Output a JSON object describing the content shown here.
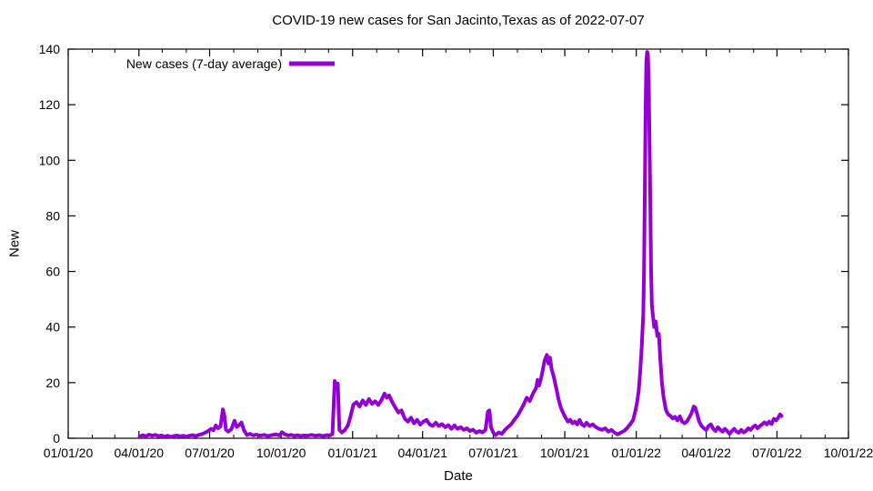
{
  "chart_data": {
    "type": "line",
    "title": "COVID-19 new cases for San Jacinto,Texas as of 2022-07-07",
    "xlabel": "Date",
    "ylabel": "New",
    "grid": false,
    "legend_position": "top-left-inside",
    "legend": [
      {
        "label": "New cases (7-day average)",
        "color": "#9400D3"
      }
    ],
    "x_range": [
      "2020-01-01",
      "2022-10-01"
    ],
    "ylim": [
      0,
      140
    ],
    "y_ticks": [
      0,
      20,
      40,
      60,
      80,
      100,
      120,
      140
    ],
    "x_ticks": [
      {
        "label": "01/01/20",
        "date": "2020-01-01"
      },
      {
        "label": "04/01/20",
        "date": "2020-04-01"
      },
      {
        "label": "07/01/20",
        "date": "2020-07-01"
      },
      {
        "label": "10/01/20",
        "date": "2020-10-01"
      },
      {
        "label": "01/01/21",
        "date": "2021-01-01"
      },
      {
        "label": "04/01/21",
        "date": "2021-04-01"
      },
      {
        "label": "07/01/21",
        "date": "2021-07-01"
      },
      {
        "label": "10/01/21",
        "date": "2021-10-01"
      },
      {
        "label": "01/01/22",
        "date": "2022-01-01"
      },
      {
        "label": "04/01/22",
        "date": "2022-04-01"
      },
      {
        "label": "07/01/22",
        "date": "2022-07-01"
      },
      {
        "label": "10/01/22",
        "date": "2022-10-01"
      }
    ],
    "x_minor_tick_interval": "month",
    "line_color": "#9400D3",
    "line_width": 4,
    "colors": {
      "axis": "#000000",
      "text": "#000000",
      "background": "#ffffff"
    },
    "series": [
      {
        "name": "New cases (7-day average)",
        "points": [
          [
            "2020-04-02",
            0.6
          ],
          [
            "2020-04-06",
            1.1
          ],
          [
            "2020-04-10",
            0.7
          ],
          [
            "2020-04-14",
            1.3
          ],
          [
            "2020-04-18",
            0.9
          ],
          [
            "2020-04-22",
            1.2
          ],
          [
            "2020-04-26",
            0.8
          ],
          [
            "2020-04-30",
            1.0
          ],
          [
            "2020-05-04",
            0.6
          ],
          [
            "2020-05-08",
            0.9
          ],
          [
            "2020-05-12",
            0.5
          ],
          [
            "2020-05-16",
            0.8
          ],
          [
            "2020-05-20",
            1.0
          ],
          [
            "2020-05-24",
            0.7
          ],
          [
            "2020-05-28",
            0.9
          ],
          [
            "2020-06-01",
            0.6
          ],
          [
            "2020-06-05",
            0.9
          ],
          [
            "2020-06-09",
            1.1
          ],
          [
            "2020-06-13",
            0.8
          ],
          [
            "2020-06-17",
            1.2
          ],
          [
            "2020-06-21",
            1.5
          ],
          [
            "2020-06-25",
            2.0
          ],
          [
            "2020-06-29",
            2.6
          ],
          [
            "2020-07-03",
            3.4
          ],
          [
            "2020-07-06",
            2.9
          ],
          [
            "2020-07-09",
            4.6
          ],
          [
            "2020-07-12",
            3.6
          ],
          [
            "2020-07-15",
            4.3
          ],
          [
            "2020-07-18",
            10.4
          ],
          [
            "2020-07-20",
            8.0
          ],
          [
            "2020-07-22",
            3.0
          ],
          [
            "2020-07-25",
            2.4
          ],
          [
            "2020-07-29",
            3.3
          ],
          [
            "2020-08-02",
            6.3
          ],
          [
            "2020-08-05",
            4.1
          ],
          [
            "2020-08-08",
            4.7
          ],
          [
            "2020-08-11",
            5.7
          ],
          [
            "2020-08-14",
            3.0
          ],
          [
            "2020-08-18",
            1.1
          ],
          [
            "2020-08-22",
            1.6
          ],
          [
            "2020-08-26",
            1.0
          ],
          [
            "2020-08-30",
            1.3
          ],
          [
            "2020-09-04",
            0.9
          ],
          [
            "2020-09-09",
            1.2
          ],
          [
            "2020-09-14",
            0.8
          ],
          [
            "2020-09-19",
            1.1
          ],
          [
            "2020-09-24",
            1.4
          ],
          [
            "2020-09-29",
            1.0
          ],
          [
            "2020-10-02",
            2.2
          ],
          [
            "2020-10-06",
            1.4
          ],
          [
            "2020-10-10",
            1.0
          ],
          [
            "2020-10-14",
            1.2
          ],
          [
            "2020-10-18",
            0.8
          ],
          [
            "2020-10-22",
            1.1
          ],
          [
            "2020-10-26",
            0.8
          ],
          [
            "2020-10-30",
            1.0
          ],
          [
            "2020-11-04",
            0.9
          ],
          [
            "2020-11-09",
            1.2
          ],
          [
            "2020-11-14",
            0.9
          ],
          [
            "2020-11-19",
            1.1
          ],
          [
            "2020-11-24",
            0.8
          ],
          [
            "2020-11-29",
            1.1
          ],
          [
            "2020-12-03",
            1.0
          ],
          [
            "2020-12-06",
            1.6
          ],
          [
            "2020-12-09",
            20.6
          ],
          [
            "2020-12-11",
            18.4
          ],
          [
            "2020-12-13",
            19.7
          ],
          [
            "2020-12-15",
            3.0
          ],
          [
            "2020-12-18",
            2.1
          ],
          [
            "2020-12-22",
            2.9
          ],
          [
            "2020-12-26",
            4.6
          ],
          [
            "2020-12-29",
            7.6
          ],
          [
            "2021-01-02",
            12.1
          ],
          [
            "2021-01-06",
            13.0
          ],
          [
            "2021-01-10",
            11.4
          ],
          [
            "2021-01-14",
            13.6
          ],
          [
            "2021-01-18",
            12.0
          ],
          [
            "2021-01-22",
            14.1
          ],
          [
            "2021-01-26",
            12.4
          ],
          [
            "2021-01-30",
            13.3
          ],
          [
            "2021-02-03",
            12.0
          ],
          [
            "2021-02-07",
            13.7
          ],
          [
            "2021-02-11",
            16.1
          ],
          [
            "2021-02-14",
            14.6
          ],
          [
            "2021-02-17",
            15.4
          ],
          [
            "2021-02-21",
            13.0
          ],
          [
            "2021-02-25",
            11.0
          ],
          [
            "2021-03-01",
            9.3
          ],
          [
            "2021-03-05",
            10.0
          ],
          [
            "2021-03-09",
            7.1
          ],
          [
            "2021-03-13",
            6.0
          ],
          [
            "2021-03-17",
            7.4
          ],
          [
            "2021-03-21",
            5.4
          ],
          [
            "2021-03-25",
            6.6
          ],
          [
            "2021-03-29",
            4.9
          ],
          [
            "2021-04-02",
            6.0
          ],
          [
            "2021-04-06",
            6.6
          ],
          [
            "2021-04-10",
            5.0
          ],
          [
            "2021-04-14",
            4.4
          ],
          [
            "2021-04-18",
            5.6
          ],
          [
            "2021-04-22",
            4.4
          ],
          [
            "2021-04-26",
            5.1
          ],
          [
            "2021-04-30",
            4.0
          ],
          [
            "2021-05-04",
            4.7
          ],
          [
            "2021-05-08",
            3.4
          ],
          [
            "2021-05-12",
            4.6
          ],
          [
            "2021-05-16",
            3.4
          ],
          [
            "2021-05-20",
            4.0
          ],
          [
            "2021-05-24",
            3.0
          ],
          [
            "2021-05-28",
            3.6
          ],
          [
            "2021-06-01",
            2.6
          ],
          [
            "2021-06-05",
            3.1
          ],
          [
            "2021-06-09",
            2.0
          ],
          [
            "2021-06-13",
            2.6
          ],
          [
            "2021-06-17",
            2.1
          ],
          [
            "2021-06-21",
            3.0
          ],
          [
            "2021-06-24",
            9.6
          ],
          [
            "2021-06-26",
            10.0
          ],
          [
            "2021-06-28",
            4.0
          ],
          [
            "2021-07-01",
            2.0
          ],
          [
            "2021-07-04",
            1.1
          ],
          [
            "2021-07-08",
            2.1
          ],
          [
            "2021-07-12",
            1.6
          ],
          [
            "2021-07-16",
            3.0
          ],
          [
            "2021-07-20",
            4.1
          ],
          [
            "2021-07-24",
            5.0
          ],
          [
            "2021-07-28",
            6.6
          ],
          [
            "2021-08-01",
            8.0
          ],
          [
            "2021-08-05",
            10.0
          ],
          [
            "2021-08-09",
            12.1
          ],
          [
            "2021-08-13",
            14.6
          ],
          [
            "2021-08-17",
            13.4
          ],
          [
            "2021-08-21",
            16.0
          ],
          [
            "2021-08-25",
            18.1
          ],
          [
            "2021-08-27",
            21.0
          ],
          [
            "2021-08-29",
            19.0
          ],
          [
            "2021-09-01",
            22.1
          ],
          [
            "2021-09-03",
            25.0
          ],
          [
            "2021-09-05",
            28.0
          ],
          [
            "2021-09-08",
            30.0
          ],
          [
            "2021-09-10",
            26.9
          ],
          [
            "2021-09-12",
            29.0
          ],
          [
            "2021-09-14",
            25.0
          ],
          [
            "2021-09-17",
            21.9
          ],
          [
            "2021-09-20",
            18.0
          ],
          [
            "2021-09-23",
            14.0
          ],
          [
            "2021-09-26",
            11.0
          ],
          [
            "2021-09-29",
            9.0
          ],
          [
            "2021-10-02",
            7.4
          ],
          [
            "2021-10-05",
            6.0
          ],
          [
            "2021-10-08",
            6.6
          ],
          [
            "2021-10-11",
            5.4
          ],
          [
            "2021-10-14",
            6.0
          ],
          [
            "2021-10-17",
            5.0
          ],
          [
            "2021-10-20",
            6.6
          ],
          [
            "2021-10-23",
            5.0
          ],
          [
            "2021-10-26",
            4.4
          ],
          [
            "2021-10-29",
            5.6
          ],
          [
            "2021-11-02",
            4.4
          ],
          [
            "2021-11-06",
            5.0
          ],
          [
            "2021-11-10",
            4.0
          ],
          [
            "2021-11-14",
            3.4
          ],
          [
            "2021-11-18",
            3.0
          ],
          [
            "2021-11-22",
            3.6
          ],
          [
            "2021-11-26",
            2.4
          ],
          [
            "2021-11-30",
            3.0
          ],
          [
            "2021-12-04",
            2.0
          ],
          [
            "2021-12-08",
            1.4
          ],
          [
            "2021-12-12",
            2.0
          ],
          [
            "2021-12-16",
            2.6
          ],
          [
            "2021-12-20",
            3.6
          ],
          [
            "2021-12-24",
            5.0
          ],
          [
            "2021-12-28",
            6.6
          ],
          [
            "2021-12-31",
            10.0
          ],
          [
            "2022-01-02",
            13.0
          ],
          [
            "2022-01-04",
            17.0
          ],
          [
            "2022-01-06",
            24.0
          ],
          [
            "2022-01-08",
            33.0
          ],
          [
            "2022-01-10",
            45.0
          ],
          [
            "2022-01-11",
            60.0
          ],
          [
            "2022-01-12",
            90.0
          ],
          [
            "2022-01-13",
            120.0
          ],
          [
            "2022-01-14",
            136.0
          ],
          [
            "2022-01-15",
            139.0
          ],
          [
            "2022-01-16",
            138.0
          ],
          [
            "2022-01-17",
            128.0
          ],
          [
            "2022-01-18",
            108.0
          ],
          [
            "2022-01-19",
            85.0
          ],
          [
            "2022-01-20",
            62.0
          ],
          [
            "2022-01-21",
            48.0
          ],
          [
            "2022-01-22",
            45.3
          ],
          [
            "2022-01-24",
            40.0
          ],
          [
            "2022-01-26",
            42.0
          ],
          [
            "2022-01-28",
            36.8
          ],
          [
            "2022-01-30",
            37.6
          ],
          [
            "2022-02-01",
            28.0
          ],
          [
            "2022-02-03",
            20.0
          ],
          [
            "2022-02-05",
            15.0
          ],
          [
            "2022-02-08",
            10.3
          ],
          [
            "2022-02-11",
            8.6
          ],
          [
            "2022-02-14",
            8.0
          ],
          [
            "2022-02-17",
            7.1
          ],
          [
            "2022-02-20",
            7.7
          ],
          [
            "2022-02-23",
            6.4
          ],
          [
            "2022-02-26",
            7.9
          ],
          [
            "2022-03-01",
            6.0
          ],
          [
            "2022-03-04",
            5.4
          ],
          [
            "2022-03-07",
            6.0
          ],
          [
            "2022-03-10",
            7.4
          ],
          [
            "2022-03-13",
            9.0
          ],
          [
            "2022-03-16",
            11.4
          ],
          [
            "2022-03-18",
            11.0
          ],
          [
            "2022-03-20",
            9.0
          ],
          [
            "2022-03-23",
            6.0
          ],
          [
            "2022-03-26",
            4.4
          ],
          [
            "2022-03-29",
            3.6
          ],
          [
            "2022-04-01",
            3.0
          ],
          [
            "2022-04-04",
            4.4
          ],
          [
            "2022-04-07",
            5.0
          ],
          [
            "2022-04-10",
            3.4
          ],
          [
            "2022-04-13",
            2.6
          ],
          [
            "2022-04-16",
            4.0
          ],
          [
            "2022-04-19",
            3.0
          ],
          [
            "2022-04-22",
            2.4
          ],
          [
            "2022-04-25",
            3.4
          ],
          [
            "2022-04-28",
            2.6
          ],
          [
            "2022-05-01",
            1.6
          ],
          [
            "2022-05-04",
            2.6
          ],
          [
            "2022-05-07",
            3.4
          ],
          [
            "2022-05-10",
            2.4
          ],
          [
            "2022-05-13",
            2.0
          ],
          [
            "2022-05-16",
            3.0
          ],
          [
            "2022-05-19",
            2.1
          ],
          [
            "2022-05-22",
            2.6
          ],
          [
            "2022-05-25",
            3.6
          ],
          [
            "2022-05-28",
            3.0
          ],
          [
            "2022-05-31",
            4.0
          ],
          [
            "2022-06-03",
            4.6
          ],
          [
            "2022-06-06",
            3.6
          ],
          [
            "2022-06-09",
            4.4
          ],
          [
            "2022-06-12",
            5.0
          ],
          [
            "2022-06-15",
            5.7
          ],
          [
            "2022-06-18",
            5.0
          ],
          [
            "2022-06-21",
            6.0
          ],
          [
            "2022-06-24",
            5.1
          ],
          [
            "2022-06-27",
            7.0
          ],
          [
            "2022-06-30",
            6.4
          ],
          [
            "2022-07-03",
            7.6
          ],
          [
            "2022-07-05",
            8.6
          ],
          [
            "2022-07-07",
            8.0
          ]
        ]
      }
    ]
  }
}
